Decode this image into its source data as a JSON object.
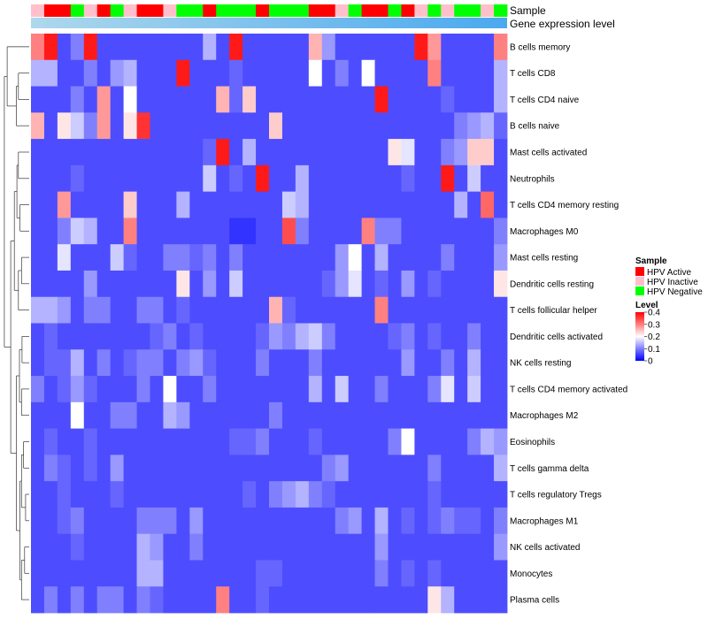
{
  "chart_data": {
    "type": "heatmap",
    "title": "",
    "annotation_labels": {
      "sample": "Sample",
      "expression": "Gene expression level"
    },
    "sample_legend": {
      "title": "Sample",
      "entries": [
        {
          "label": "HPV Active",
          "color": "#ff0000"
        },
        {
          "label": "HPV Inactive",
          "color": "#ffc0cb"
        },
        {
          "label": "HPV Negative",
          "color": "#00ff00"
        }
      ]
    },
    "level_legend": {
      "title": "Level",
      "ticks": [
        {
          "value": 0.4,
          "label": "0.4"
        },
        {
          "value": 0.3,
          "label": "0.3"
        },
        {
          "value": 0.2,
          "label": "0.2"
        },
        {
          "value": 0.1,
          "label": "0.1"
        },
        {
          "value": 0,
          "label": "0"
        }
      ],
      "min": 0,
      "max": 0.4,
      "colors": {
        "low": "#0000ff",
        "mid": "#ffffff",
        "high": "#ff0000"
      }
    },
    "expression_bar": {
      "start_color": "#aed8ec",
      "end_color": "#4aa9ee"
    },
    "sample_groups": [
      "Inactive",
      "Active",
      "Active",
      "Negative",
      "Inactive",
      "Active",
      "Negative",
      "Inactive",
      "Active",
      "Active",
      "Inactive",
      "Negative",
      "Negative",
      "Active",
      "Negative",
      "Negative",
      "Negative",
      "Active",
      "Negative",
      "Negative",
      "Negative",
      "Active",
      "Active",
      "Inactive",
      "Negative",
      "Active",
      "Active",
      "Negative",
      "Active",
      "Inactive",
      "Negative",
      "Inactive",
      "Negative",
      "Negative",
      "Inactive",
      "Negative"
    ],
    "rows": [
      {
        "label": "B cells memory",
        "values": [
          0.3,
          0.38,
          0.06,
          0.1,
          0.38,
          0.06,
          0.06,
          0.06,
          0.06,
          0.06,
          0.06,
          0.06,
          0.06,
          0.14,
          0.06,
          0.38,
          0.06,
          0.06,
          0.06,
          0.06,
          0.06,
          0.26,
          0.12,
          0.06,
          0.06,
          0.06,
          0.06,
          0.06,
          0.06,
          0.38,
          0.28,
          0.06,
          0.06,
          0.06,
          0.06,
          0.3
        ]
      },
      {
        "label": "T cells CD8",
        "values": [
          0.14,
          0.14,
          0.06,
          0.06,
          0.1,
          0.06,
          0.12,
          0.14,
          0.06,
          0.06,
          0.06,
          0.38,
          0.06,
          0.06,
          0.06,
          0.08,
          0.06,
          0.06,
          0.06,
          0.06,
          0.06,
          0.2,
          0.06,
          0.1,
          0.06,
          0.2,
          0.06,
          0.06,
          0.06,
          0.06,
          0.3,
          0.06,
          0.06,
          0.06,
          0.06,
          0.14
        ]
      },
      {
        "label": "T cells CD4 naive",
        "values": [
          0.06,
          0.06,
          0.06,
          0.1,
          0.06,
          0.28,
          0.06,
          0.2,
          0.06,
          0.06,
          0.06,
          0.06,
          0.06,
          0.06,
          0.26,
          0.08,
          0.24,
          0.06,
          0.06,
          0.06,
          0.06,
          0.06,
          0.06,
          0.06,
          0.06,
          0.06,
          0.38,
          0.06,
          0.06,
          0.06,
          0.06,
          0.08,
          0.06,
          0.06,
          0.06,
          0.14
        ]
      },
      {
        "label": "B cells naive",
        "values": [
          0.26,
          0.06,
          0.22,
          0.16,
          0.1,
          0.28,
          0.06,
          0.22,
          0.36,
          0.06,
          0.06,
          0.06,
          0.06,
          0.06,
          0.06,
          0.06,
          0.06,
          0.06,
          0.24,
          0.06,
          0.06,
          0.06,
          0.06,
          0.06,
          0.06,
          0.06,
          0.06,
          0.06,
          0.06,
          0.06,
          0.06,
          0.06,
          0.1,
          0.12,
          0.14,
          0.08
        ]
      },
      {
        "label": "Mast cells activated",
        "values": [
          0.06,
          0.06,
          0.06,
          0.06,
          0.06,
          0.06,
          0.06,
          0.06,
          0.06,
          0.06,
          0.06,
          0.06,
          0.06,
          0.08,
          0.38,
          0.06,
          0.14,
          0.06,
          0.06,
          0.06,
          0.06,
          0.06,
          0.06,
          0.06,
          0.06,
          0.06,
          0.06,
          0.22,
          0.18,
          0.06,
          0.06,
          0.1,
          0.12,
          0.24,
          0.24,
          0.06
        ]
      },
      {
        "label": "Neutrophils",
        "values": [
          0.06,
          0.06,
          0.06,
          0.08,
          0.06,
          0.06,
          0.06,
          0.06,
          0.06,
          0.06,
          0.06,
          0.06,
          0.06,
          0.16,
          0.06,
          0.08,
          0.06,
          0.38,
          0.06,
          0.06,
          0.14,
          0.06,
          0.06,
          0.06,
          0.06,
          0.06,
          0.06,
          0.06,
          0.08,
          0.06,
          0.06,
          0.38,
          0.06,
          0.16,
          0.06,
          0.06
        ]
      },
      {
        "label": "T cells CD4 memory resting",
        "values": [
          0.06,
          0.06,
          0.28,
          0.06,
          0.06,
          0.06,
          0.06,
          0.24,
          0.06,
          0.06,
          0.06,
          0.14,
          0.06,
          0.06,
          0.06,
          0.06,
          0.06,
          0.06,
          0.06,
          0.16,
          0.14,
          0.06,
          0.06,
          0.06,
          0.06,
          0.06,
          0.06,
          0.06,
          0.06,
          0.06,
          0.06,
          0.06,
          0.14,
          0.06,
          0.32,
          0.06
        ]
      },
      {
        "label": "Macrophages M0",
        "values": [
          0.06,
          0.06,
          0.1,
          0.16,
          0.14,
          0.06,
          0.06,
          0.3,
          0.06,
          0.06,
          0.06,
          0.06,
          0.06,
          0.06,
          0.06,
          0.04,
          0.04,
          0.06,
          0.06,
          0.34,
          0.1,
          0.06,
          0.06,
          0.06,
          0.06,
          0.3,
          0.1,
          0.1,
          0.06,
          0.06,
          0.06,
          0.06,
          0.06,
          0.06,
          0.06,
          0.1
        ]
      },
      {
        "label": "Mast cells resting",
        "values": [
          0.06,
          0.06,
          0.18,
          0.06,
          0.06,
          0.06,
          0.16,
          0.08,
          0.06,
          0.06,
          0.1,
          0.1,
          0.08,
          0.1,
          0.06,
          0.1,
          0.06,
          0.06,
          0.06,
          0.06,
          0.06,
          0.06,
          0.06,
          0.12,
          0.2,
          0.06,
          0.14,
          0.06,
          0.06,
          0.06,
          0.06,
          0.1,
          0.06,
          0.06,
          0.06,
          0.12
        ]
      },
      {
        "label": "Dendritic cells resting",
        "values": [
          0.06,
          0.06,
          0.06,
          0.06,
          0.12,
          0.06,
          0.06,
          0.06,
          0.06,
          0.06,
          0.06,
          0.22,
          0.06,
          0.12,
          0.06,
          0.16,
          0.06,
          0.06,
          0.06,
          0.06,
          0.06,
          0.06,
          0.08,
          0.12,
          0.18,
          0.06,
          0.08,
          0.06,
          0.12,
          0.06,
          0.08,
          0.06,
          0.06,
          0.06,
          0.06,
          0.22
        ]
      },
      {
        "label": "T cells follicular helper",
        "values": [
          0.14,
          0.14,
          0.12,
          0.06,
          0.1,
          0.1,
          0.06,
          0.06,
          0.1,
          0.1,
          0.06,
          0.08,
          0.06,
          0.06,
          0.06,
          0.06,
          0.06,
          0.06,
          0.26,
          0.08,
          0.06,
          0.06,
          0.06,
          0.06,
          0.06,
          0.06,
          0.3,
          0.06,
          0.06,
          0.06,
          0.06,
          0.06,
          0.06,
          0.06,
          0.06,
          0.06
        ]
      },
      {
        "label": "Dendritic cells activated",
        "values": [
          0.06,
          0.08,
          0.06,
          0.06,
          0.06,
          0.06,
          0.06,
          0.06,
          0.06,
          0.08,
          0.1,
          0.06,
          0.08,
          0.06,
          0.06,
          0.06,
          0.06,
          0.08,
          0.12,
          0.1,
          0.14,
          0.16,
          0.1,
          0.06,
          0.06,
          0.06,
          0.06,
          0.08,
          0.1,
          0.06,
          0.08,
          0.06,
          0.06,
          0.1,
          0.06,
          0.06
        ]
      },
      {
        "label": "NK cells resting",
        "values": [
          0.06,
          0.08,
          0.08,
          0.14,
          0.06,
          0.1,
          0.06,
          0.08,
          0.1,
          0.1,
          0.06,
          0.1,
          0.12,
          0.08,
          0.06,
          0.06,
          0.06,
          0.1,
          0.06,
          0.06,
          0.06,
          0.1,
          0.06,
          0.06,
          0.06,
          0.06,
          0.06,
          0.06,
          0.12,
          0.06,
          0.06,
          0.1,
          0.06,
          0.14,
          0.06,
          0.06
        ]
      },
      {
        "label": "T cells CD4 memory activated",
        "values": [
          0.1,
          0.06,
          0.08,
          0.12,
          0.08,
          0.06,
          0.06,
          0.06,
          0.1,
          0.06,
          0.2,
          0.06,
          0.06,
          0.1,
          0.06,
          0.06,
          0.06,
          0.06,
          0.06,
          0.06,
          0.06,
          0.14,
          0.06,
          0.16,
          0.06,
          0.06,
          0.1,
          0.06,
          0.06,
          0.06,
          0.1,
          0.18,
          0.06,
          0.16,
          0.06,
          0.06
        ]
      },
      {
        "label": "Macrophages M2",
        "values": [
          0.06,
          0.06,
          0.06,
          0.2,
          0.06,
          0.06,
          0.1,
          0.1,
          0.06,
          0.06,
          0.14,
          0.12,
          0.06,
          0.06,
          0.06,
          0.06,
          0.06,
          0.06,
          0.1,
          0.06,
          0.06,
          0.06,
          0.06,
          0.06,
          0.06,
          0.06,
          0.06,
          0.06,
          0.06,
          0.06,
          0.06,
          0.06,
          0.06,
          0.06,
          0.06,
          0.06
        ]
      },
      {
        "label": "Eosinophils",
        "values": [
          0.06,
          0.08,
          0.06,
          0.06,
          0.08,
          0.06,
          0.06,
          0.06,
          0.06,
          0.06,
          0.06,
          0.06,
          0.06,
          0.06,
          0.06,
          0.08,
          0.08,
          0.1,
          0.06,
          0.06,
          0.06,
          0.08,
          0.06,
          0.06,
          0.06,
          0.06,
          0.06,
          0.1,
          0.2,
          0.06,
          0.06,
          0.06,
          0.06,
          0.1,
          0.14,
          0.12
        ]
      },
      {
        "label": "T cells gamma delta",
        "values": [
          0.06,
          0.1,
          0.08,
          0.06,
          0.08,
          0.06,
          0.12,
          0.06,
          0.06,
          0.06,
          0.06,
          0.06,
          0.06,
          0.06,
          0.06,
          0.06,
          0.06,
          0.06,
          0.06,
          0.06,
          0.06,
          0.06,
          0.1,
          0.12,
          0.06,
          0.06,
          0.06,
          0.06,
          0.06,
          0.06,
          0.1,
          0.06,
          0.06,
          0.06,
          0.06,
          0.14
        ]
      },
      {
        "label": "T cells regulatory  Tregs",
        "values": [
          0.06,
          0.06,
          0.08,
          0.06,
          0.06,
          0.06,
          0.08,
          0.06,
          0.06,
          0.06,
          0.06,
          0.06,
          0.06,
          0.06,
          0.06,
          0.06,
          0.08,
          0.06,
          0.1,
          0.12,
          0.14,
          0.1,
          0.08,
          0.06,
          0.06,
          0.06,
          0.06,
          0.06,
          0.06,
          0.06,
          0.08,
          0.06,
          0.06,
          0.06,
          0.06,
          0.06
        ]
      },
      {
        "label": "Macrophages M1",
        "values": [
          0.06,
          0.06,
          0.08,
          0.1,
          0.06,
          0.06,
          0.06,
          0.06,
          0.1,
          0.1,
          0.1,
          0.06,
          0.12,
          0.06,
          0.06,
          0.06,
          0.06,
          0.06,
          0.06,
          0.06,
          0.06,
          0.06,
          0.06,
          0.1,
          0.12,
          0.06,
          0.14,
          0.06,
          0.08,
          0.06,
          0.08,
          0.1,
          0.08,
          0.08,
          0.06,
          0.1
        ]
      },
      {
        "label": "NK cells activated",
        "values": [
          0.06,
          0.06,
          0.06,
          0.08,
          0.06,
          0.06,
          0.06,
          0.06,
          0.14,
          0.12,
          0.06,
          0.06,
          0.1,
          0.06,
          0.06,
          0.06,
          0.06,
          0.06,
          0.06,
          0.06,
          0.06,
          0.06,
          0.06,
          0.06,
          0.06,
          0.06,
          0.12,
          0.06,
          0.06,
          0.06,
          0.06,
          0.06,
          0.06,
          0.06,
          0.06,
          0.12
        ]
      },
      {
        "label": "Monocytes",
        "values": [
          0.06,
          0.06,
          0.06,
          0.06,
          0.06,
          0.06,
          0.06,
          0.06,
          0.14,
          0.14,
          0.06,
          0.06,
          0.06,
          0.06,
          0.06,
          0.06,
          0.06,
          0.08,
          0.08,
          0.06,
          0.06,
          0.06,
          0.06,
          0.06,
          0.06,
          0.06,
          0.1,
          0.06,
          0.08,
          0.06,
          0.08,
          0.06,
          0.06,
          0.06,
          0.06,
          0.06
        ]
      },
      {
        "label": "Plasma cells",
        "values": [
          0.06,
          0.1,
          0.06,
          0.1,
          0.06,
          0.1,
          0.1,
          0.06,
          0.1,
          0.08,
          0.06,
          0.06,
          0.06,
          0.06,
          0.3,
          0.06,
          0.06,
          0.08,
          0.06,
          0.06,
          0.06,
          0.06,
          0.06,
          0.06,
          0.06,
          0.06,
          0.06,
          0.06,
          0.06,
          0.06,
          0.22,
          0.14,
          0.06,
          0.06,
          0.06,
          0.06
        ]
      }
    ]
  }
}
